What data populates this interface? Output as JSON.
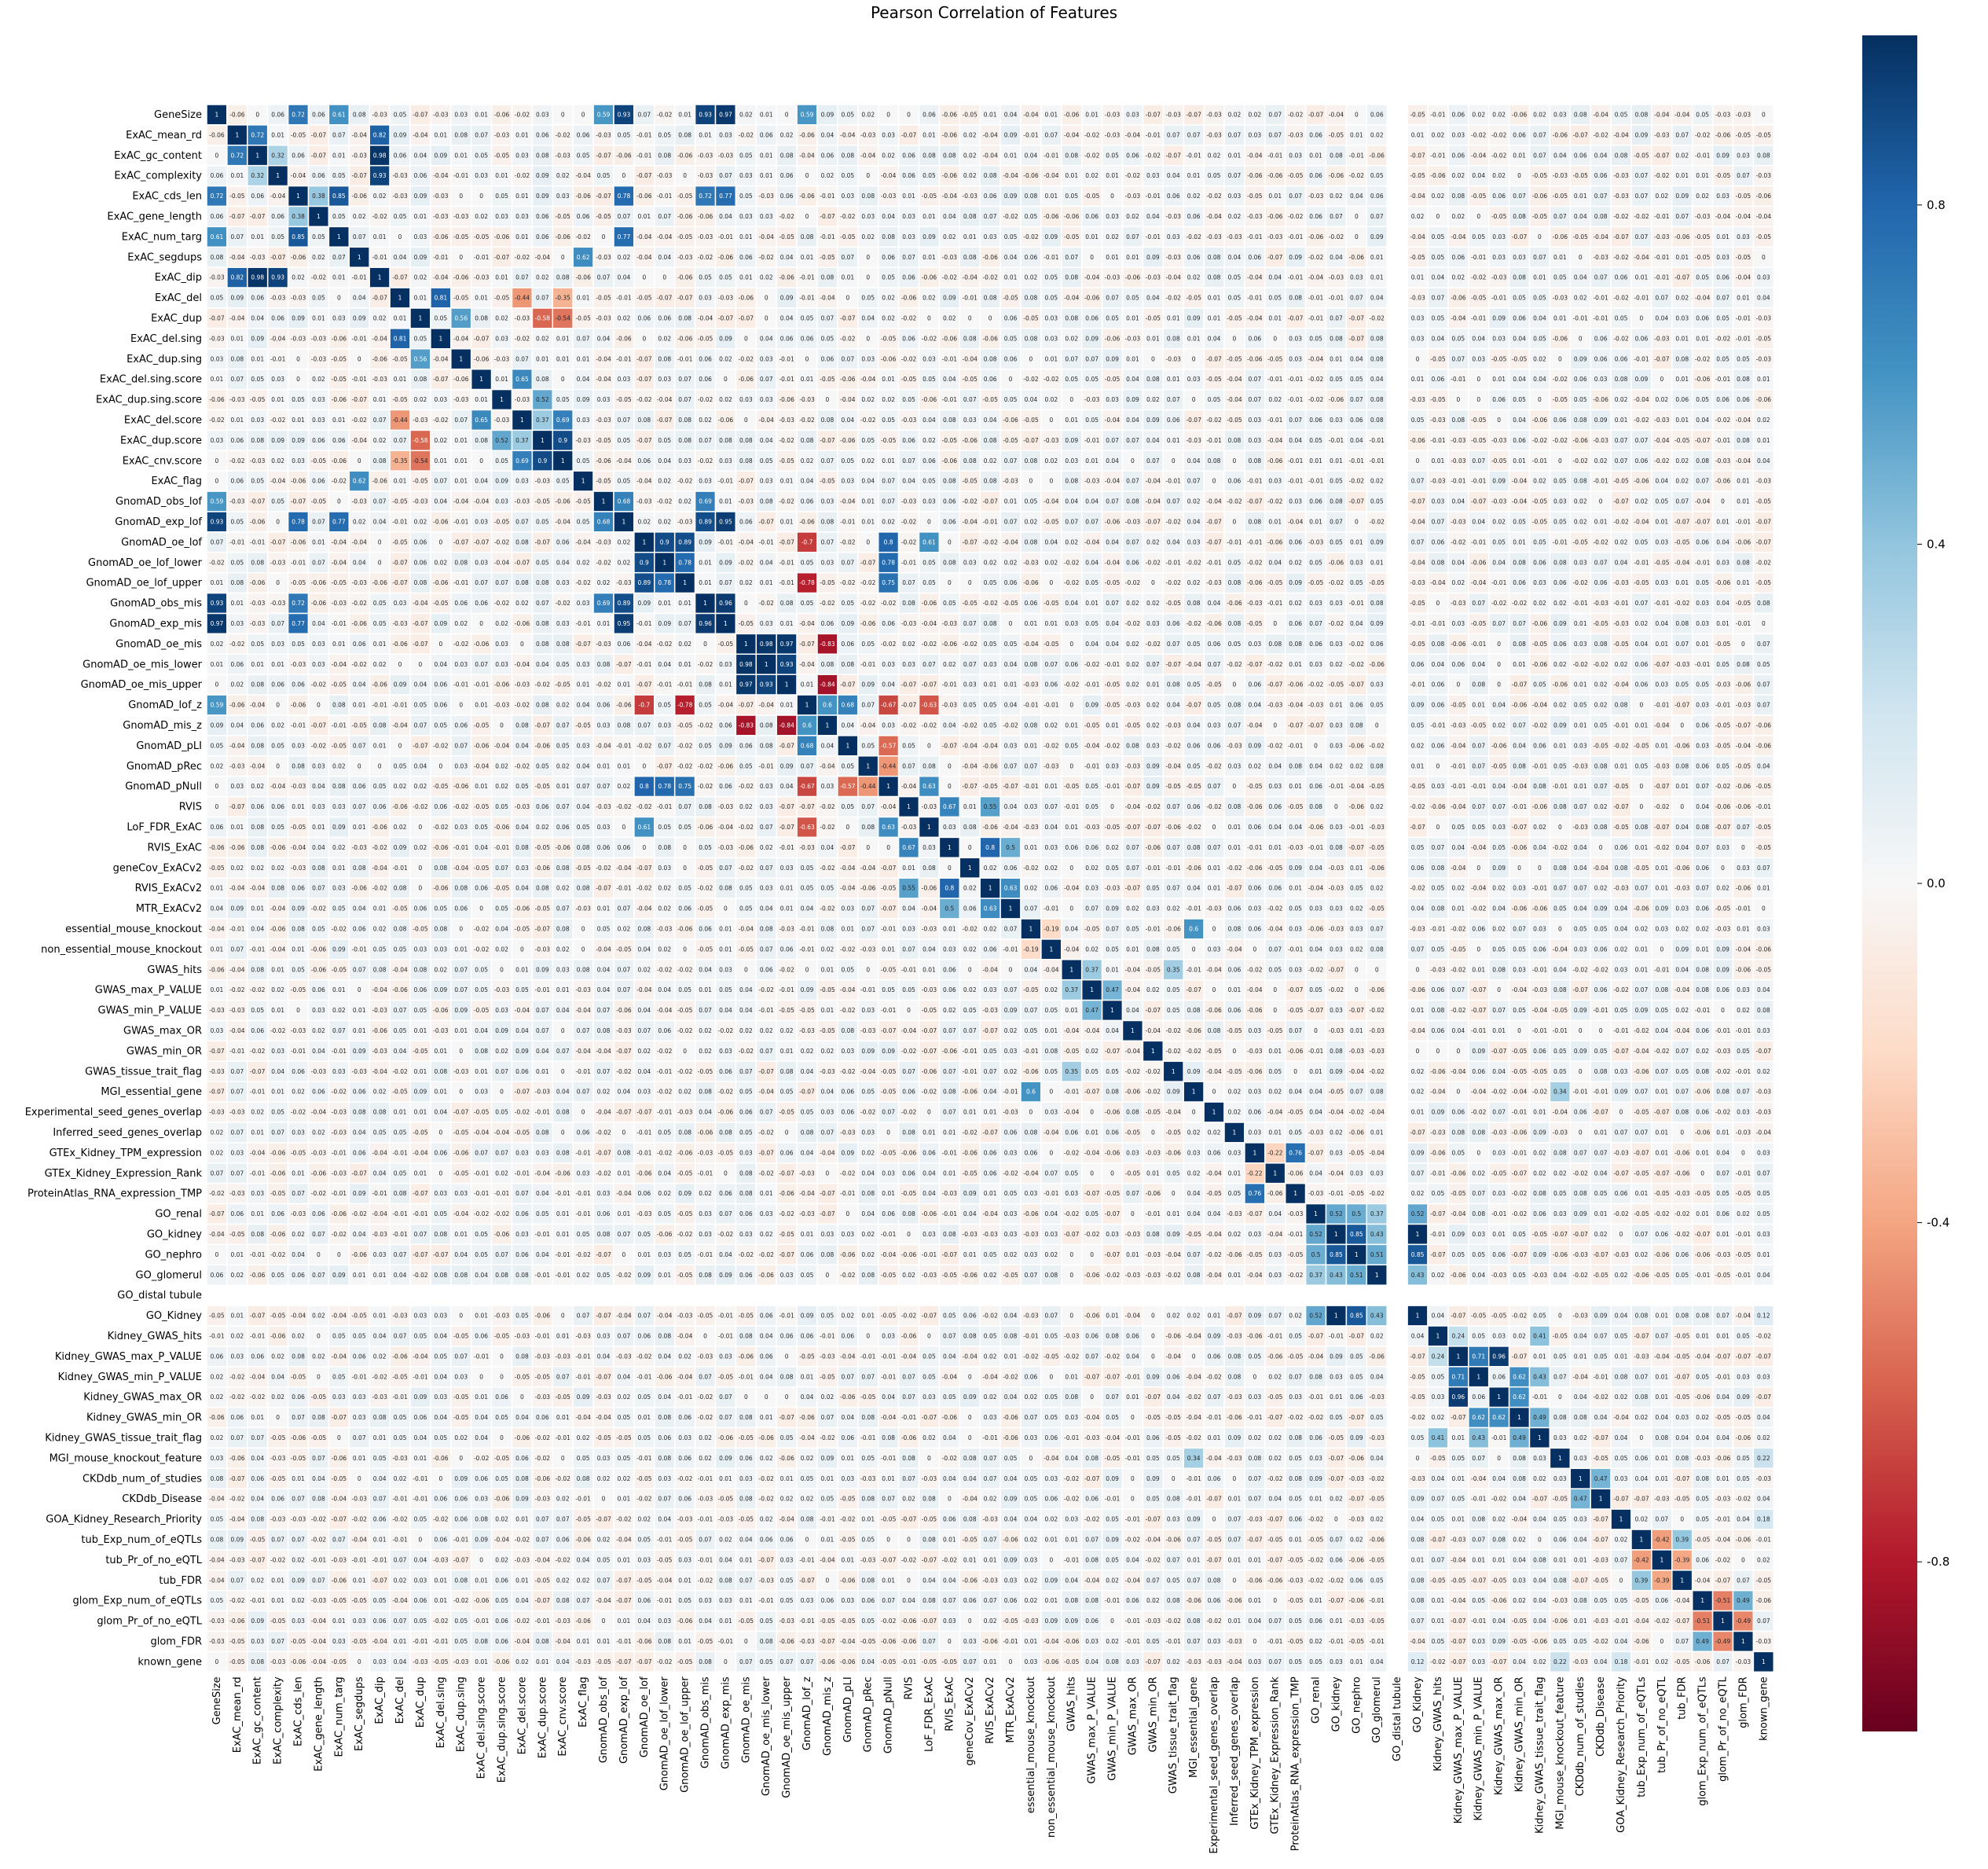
{
  "chart_data": {
    "type": "heatmap",
    "title": "Pearson Correlation of Features",
    "xlabel": "",
    "ylabel": "",
    "labels": [
      "GeneSize",
      "ExAC_mean_rd",
      "ExAC_gc_content",
      "ExAC_complexity",
      "ExAC_cds_len",
      "ExAC_gene_length",
      "ExAC_num_targ",
      "ExAC_segdups",
      "ExAC_dip",
      "ExAC_del",
      "ExAC_dup",
      "ExAC_del.sing",
      "ExAC_dup.sing",
      "ExAC_del.sing.score",
      "ExAC_dup.sing.score",
      "ExAC_del.score",
      "ExAC_dup.score",
      "ExAC_cnv.score",
      "ExAC_flag",
      "GnomAD_obs_lof",
      "GnomAD_exp_lof",
      "GnomAD_oe_lof",
      "GnomAD_oe_lof_lower",
      "GnomAD_oe_lof_upper",
      "GnomAD_obs_mis",
      "GnomAD_exp_mis",
      "GnomAD_oe_mis",
      "GnomAD_oe_mis_lower",
      "GnomAD_oe_mis_upper",
      "GnomAD_lof_z",
      "GnomAD_mis_z",
      "GnomAD_pLI",
      "GnomAD_pRec",
      "GnomAD_pNull",
      "RVIS",
      "LoF_FDR_ExAC",
      "RVIS_ExAC",
      "geneCov_ExACv2",
      "RVIS_ExACv2",
      "MTR_ExACv2",
      "essential_mouse_knockout",
      "non_essential_mouse_knockout",
      "GWAS_hits",
      "GWAS_max_P_VALUE",
      "GWAS_min_P_VALUE",
      "GWAS_max_OR",
      "GWAS_min_OR",
      "GWAS_tissue_trait_flag",
      "MGI_essential_gene",
      "Experimental_seed_genes_overlap",
      "Inferred_seed_genes_overlap",
      "GTEx_Kidney_TPM_expression",
      "GTEx_Kidney_Expression_Rank",
      "ProteinAtlas_RNA_expression_TMP",
      "GO_renal",
      "GO_kidney",
      "GO_nephro",
      "GO_glomerul",
      "GO_distal tubule",
      "GO_Kidney",
      "Kidney_GWAS_hits",
      "Kidney_GWAS_max_P_VALUE",
      "Kidney_GWAS_min_P_VALUE",
      "Kidney_GWAS_max_OR",
      "Kidney_GWAS_min_OR",
      "Kidney_GWAS_tissue_trait_flag",
      "MGI_mouse_knockout_feature",
      "CKDdb_num_of_studies",
      "CKDdb_Disease",
      "GOA_Kidney_Research_Priority",
      "tub_Exp_num_of_eQTLs",
      "tub_Pr_of_no_eQTL",
      "tub_FDR",
      "glom_Exp_num_of_eQTLs",
      "glom_Pr_of_no_eQTL",
      "glom_FDR",
      "known_gene"
    ],
    "vmin": -1,
    "vmax": 1,
    "colorscale": [
      "#67001f",
      "#b2182b",
      "#d6604d",
      "#f4a582",
      "#fddbc7",
      "#f7f7f7",
      "#d1e5f0",
      "#92c5de",
      "#4393c3",
      "#2166ac",
      "#053061"
    ],
    "colorbar_ticks": [
      "-0.8",
      "-0.4",
      "0.0",
      "0.4",
      "0.8"
    ],
    "empty_label": "GO_distal tubule",
    "diagonal_value": 1,
    "strong_pairs": [
      [
        "GeneSize",
        "ExAC_cds_len",
        0.72
      ],
      [
        "GeneSize",
        "ExAC_num_targ",
        0.61
      ],
      [
        "GeneSize",
        "GnomAD_obs_lof",
        0.59
      ],
      [
        "GeneSize",
        "GnomAD_exp_lof",
        0.93
      ],
      [
        "GeneSize",
        "GnomAD_obs_mis",
        0.93
      ],
      [
        "GeneSize",
        "GnomAD_exp_mis",
        0.97
      ],
      [
        "GeneSize",
        "GnomAD_lof_z",
        0.59
      ],
      [
        "ExAC_mean_rd",
        "ExAC_gc_content",
        0.72
      ],
      [
        "ExAC_gc_content",
        "ExAC_complexity",
        0.32
      ],
      [
        "ExAC_gc_content",
        "ExAC_dip",
        0.98
      ],
      [
        "ExAC_mean_rd",
        "ExAC_dip",
        0.82
      ],
      [
        "ExAC_complexity",
        "ExAC_dip",
        0.93
      ],
      [
        "ExAC_cds_len",
        "ExAC_gene_length",
        0.38
      ],
      [
        "ExAC_cds_len",
        "ExAC_num_targ",
        0.85
      ],
      [
        "ExAC_cds_len",
        "GnomAD_exp_lof",
        0.78
      ],
      [
        "ExAC_cds_len",
        "GnomAD_exp_mis",
        0.77
      ],
      [
        "ExAC_cds_len",
        "GnomAD_obs_mis",
        0.72
      ],
      [
        "ExAC_num_targ",
        "GnomAD_exp_lof",
        0.77
      ],
      [
        "ExAC_segdups",
        "ExAC_flag",
        0.62
      ],
      [
        "ExAC_del",
        "ExAC_del.sing",
        0.81
      ],
      [
        "ExAC_dup",
        "ExAC_dup.sing",
        0.56
      ],
      [
        "ExAC_del.sing.score",
        "ExAC_del.score",
        0.65
      ],
      [
        "ExAC_dup.sing.score",
        "ExAC_dup.score",
        0.52
      ],
      [
        "ExAC_del.score",
        "ExAC_cnv.score",
        0.69
      ],
      [
        "ExAC_dup.score",
        "ExAC_cnv.score",
        0.9
      ],
      [
        "ExAC_del.score",
        "ExAC_dup.score",
        0.37
      ],
      [
        "ExAC_dup",
        "ExAC_dup.score",
        -0.58
      ],
      [
        "ExAC_dup",
        "ExAC_cnv.score",
        -0.54
      ],
      [
        "ExAC_del",
        "ExAC_del.score",
        -0.44
      ],
      [
        "ExAC_del",
        "ExAC_cnv.score",
        -0.35
      ],
      [
        "GnomAD_obs_lof",
        "GnomAD_exp_lof",
        0.68
      ],
      [
        "GnomAD_obs_lof",
        "GnomAD_obs_mis",
        0.69
      ],
      [
        "GnomAD_exp_lof",
        "GnomAD_exp_mis",
        0.95
      ],
      [
        "GnomAD_exp_lof",
        "GnomAD_obs_mis",
        0.89
      ],
      [
        "GnomAD_obs_mis",
        "GnomAD_exp_mis",
        0.96
      ],
      [
        "GnomAD_oe_lof",
        "GnomAD_oe_lof_lower",
        0.9
      ],
      [
        "GnomAD_oe_lof",
        "GnomAD_oe_lof_upper",
        0.89
      ],
      [
        "GnomAD_oe_lof_lower",
        "GnomAD_oe_lof_upper",
        0.78
      ],
      [
        "GnomAD_oe_mis",
        "GnomAD_oe_mis_lower",
        0.98
      ],
      [
        "GnomAD_oe_mis",
        "GnomAD_oe_mis_upper",
        0.97
      ],
      [
        "GnomAD_oe_mis_lower",
        "GnomAD_oe_mis_upper",
        0.93
      ],
      [
        "GnomAD_oe_lof",
        "GnomAD_lof_z",
        -0.7
      ],
      [
        "GnomAD_oe_lof_upper",
        "GnomAD_lof_z",
        -0.78
      ],
      [
        "GnomAD_oe_mis",
        "GnomAD_mis_z",
        -0.83
      ],
      [
        "GnomAD_oe_mis_upper",
        "GnomAD_mis_z",
        -0.84
      ],
      [
        "GnomAD_lof_z",
        "GnomAD_pLI",
        0.68
      ],
      [
        "GnomAD_lof_z",
        "GnomAD_mis_z",
        0.6
      ],
      [
        "GnomAD_pLI",
        "GnomAD_pNull",
        -0.57
      ],
      [
        "GnomAD_pRec",
        "GnomAD_pNull",
        -0.44
      ],
      [
        "GnomAD_oe_lof",
        "GnomAD_pNull",
        0.8
      ],
      [
        "GnomAD_oe_lof_lower",
        "GnomAD_pNull",
        0.78
      ],
      [
        "GnomAD_oe_lof_upper",
        "GnomAD_pNull",
        0.75
      ],
      [
        "GnomAD_lof_z",
        "GnomAD_pNull",
        -0.67
      ],
      [
        "GnomAD_oe_lof",
        "LoF_FDR_ExAC",
        0.61
      ],
      [
        "GnomAD_lof_z",
        "LoF_FDR_ExAC",
        -0.63
      ],
      [
        "GnomAD_pNull",
        "LoF_FDR_ExAC",
        0.63
      ],
      [
        "RVIS",
        "RVIS_ExAC",
        0.67
      ],
      [
        "RVIS",
        "RVIS_ExACv2",
        0.55
      ],
      [
        "RVIS_ExAC",
        "RVIS_ExACv2",
        0.8
      ],
      [
        "RVIS_ExACv2",
        "MTR_ExACv2",
        0.63
      ],
      [
        "RVIS_ExAC",
        "MTR_ExACv2",
        0.5
      ],
      [
        "essential_mouse_knockout",
        "non_essential_mouse_knockout",
        -0.19
      ],
      [
        "essential_mouse_knockout",
        "MGI_essential_gene",
        0.6
      ],
      [
        "GWAS_hits",
        "GWAS_max_P_VALUE",
        0.37
      ],
      [
        "GWAS_hits",
        "GWAS_tissue_trait_flag",
        0.35
      ],
      [
        "GWAS_max_P_VALUE",
        "GWAS_min_P_VALUE",
        0.47
      ],
      [
        "GTEx_Kidney_TPM_expression",
        "GTEx_Kidney_Expression_Rank",
        -0.22
      ],
      [
        "GTEx_Kidney_TPM_expression",
        "ProteinAtlas_RNA_expression_TMP",
        0.76
      ],
      [
        "GO_renal",
        "GO_kidney",
        0.52
      ],
      [
        "GO_renal",
        "GO_nephro",
        0.5
      ],
      [
        "GO_renal",
        "GO_glomerul",
        0.37
      ],
      [
        "GO_kidney",
        "GO_nephro",
        0.85
      ],
      [
        "GO_kidney",
        "GO_glomerul",
        0.43
      ],
      [
        "GO_nephro",
        "GO_glomerul",
        0.51
      ],
      [
        "GO_Kidney",
        "GO_renal",
        0.52
      ],
      [
        "GO_Kidney",
        "GO_kidney",
        1.0
      ],
      [
        "GO_Kidney",
        "GO_nephro",
        0.85
      ],
      [
        "GO_Kidney",
        "GO_glomerul",
        0.43
      ],
      [
        "Kidney_GWAS_hits",
        "Kidney_GWAS_max_P_VALUE",
        0.24
      ],
      [
        "Kidney_GWAS_max_P_VALUE",
        "Kidney_GWAS_min_P_VALUE",
        0.71
      ],
      [
        "Kidney_GWAS_max_P_VALUE",
        "Kidney_GWAS_max_OR",
        0.96
      ],
      [
        "Kidney_GWAS_min_P_VALUE",
        "Kidney_GWAS_min_OR",
        0.62
      ],
      [
        "Kidney_GWAS_max_OR",
        "Kidney_GWAS_min_OR",
        0.62
      ],
      [
        "Kidney_GWAS_hits",
        "Kidney_GWAS_tissue_trait_flag",
        0.41
      ],
      [
        "Kidney_GWAS_min_OR",
        "Kidney_GWAS_tissue_trait_flag",
        0.49
      ],
      [
        "Kidney_GWAS_tissue_trait_flag",
        "Kidney_GWAS_min_P_VALUE",
        0.43
      ],
      [
        "CKDdb_num_of_studies",
        "CKDdb_Disease",
        0.47
      ],
      [
        "MGI_mouse_knockout_feature",
        "MGI_essential_gene",
        0.34
      ],
      [
        "tub_Exp_num_of_eQTLs",
        "tub_Pr_of_no_eQTL",
        -0.42
      ],
      [
        "tub_Exp_num_of_eQTLs",
        "tub_FDR",
        0.39
      ],
      [
        "tub_Pr_of_no_eQTL",
        "tub_FDR",
        -0.39
      ],
      [
        "glom_Exp_num_of_eQTLs",
        "glom_Pr_of_no_eQTL",
        -0.51
      ],
      [
        "glom_Exp_num_of_eQTLs",
        "glom_FDR",
        0.49
      ],
      [
        "glom_Pr_of_no_eQTL",
        "glom_FDR",
        -0.49
      ],
      [
        "known_gene",
        "GOA_Kidney_Research_Priority",
        0.18
      ],
      [
        "known_gene",
        "GO_Kidney",
        0.12
      ],
      [
        "known_gene",
        "MGI_mouse_knockout_feature",
        0.22
      ]
    ]
  }
}
